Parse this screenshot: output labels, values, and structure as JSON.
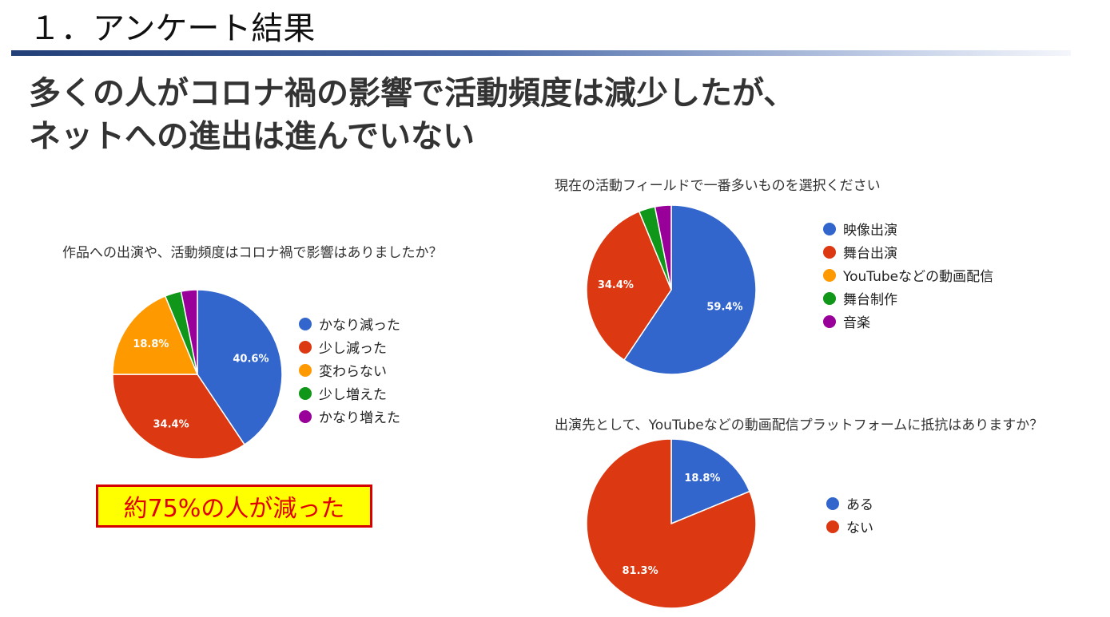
{
  "page": {
    "section_title": "１．アンケート結果",
    "headline_line1": "多くの人がコロナ禍の影響で活動頻度は減少したが、",
    "headline_line2": "ネットへの進出は進んでいない",
    "callout": "約75%の人が減った"
  },
  "chart_data": [
    {
      "type": "pie",
      "title": "作品への出演や、活動頻度はコロナ禍で影響はありましたか？",
      "series": [
        {
          "categories": [
            "かなり減った",
            "少し減った",
            "変わらない",
            "少し増えた",
            "かなり増えた"
          ],
          "values": [
            40.6,
            34.4,
            18.8,
            3.1,
            3.1
          ],
          "labels": [
            "40.6%",
            "34.4%",
            "18.8%",
            "",
            ""
          ]
        }
      ],
      "colors": [
        "#3366cc",
        "#dc3912",
        "#ff9900",
        "#109618",
        "#990099"
      ],
      "legend_position": "right"
    },
    {
      "type": "pie",
      "title": "現在の活動フィールドで一番多いものを選択ください",
      "series": [
        {
          "categories": [
            "映像出演",
            "舞台出演",
            "YouTubeなどの動画配信",
            "舞台制作",
            "音楽"
          ],
          "values": [
            59.4,
            34.4,
            0,
            3.1,
            3.1
          ],
          "labels": [
            "59.4%",
            "34.4%",
            "",
            "",
            ""
          ]
        }
      ],
      "colors": [
        "#3366cc",
        "#dc3912",
        "#ff9900",
        "#109618",
        "#990099"
      ],
      "legend_position": "right"
    },
    {
      "type": "pie",
      "title": "出演先として、YouTubeなどの動画配信プラットフォームに抵抗はありますか？",
      "series": [
        {
          "categories": [
            "ある",
            "ない"
          ],
          "values": [
            18.8,
            81.3
          ],
          "labels": [
            "18.8%",
            "81.3%"
          ]
        }
      ],
      "colors": [
        "#3366cc",
        "#dc3912"
      ],
      "legend_position": "right"
    }
  ]
}
